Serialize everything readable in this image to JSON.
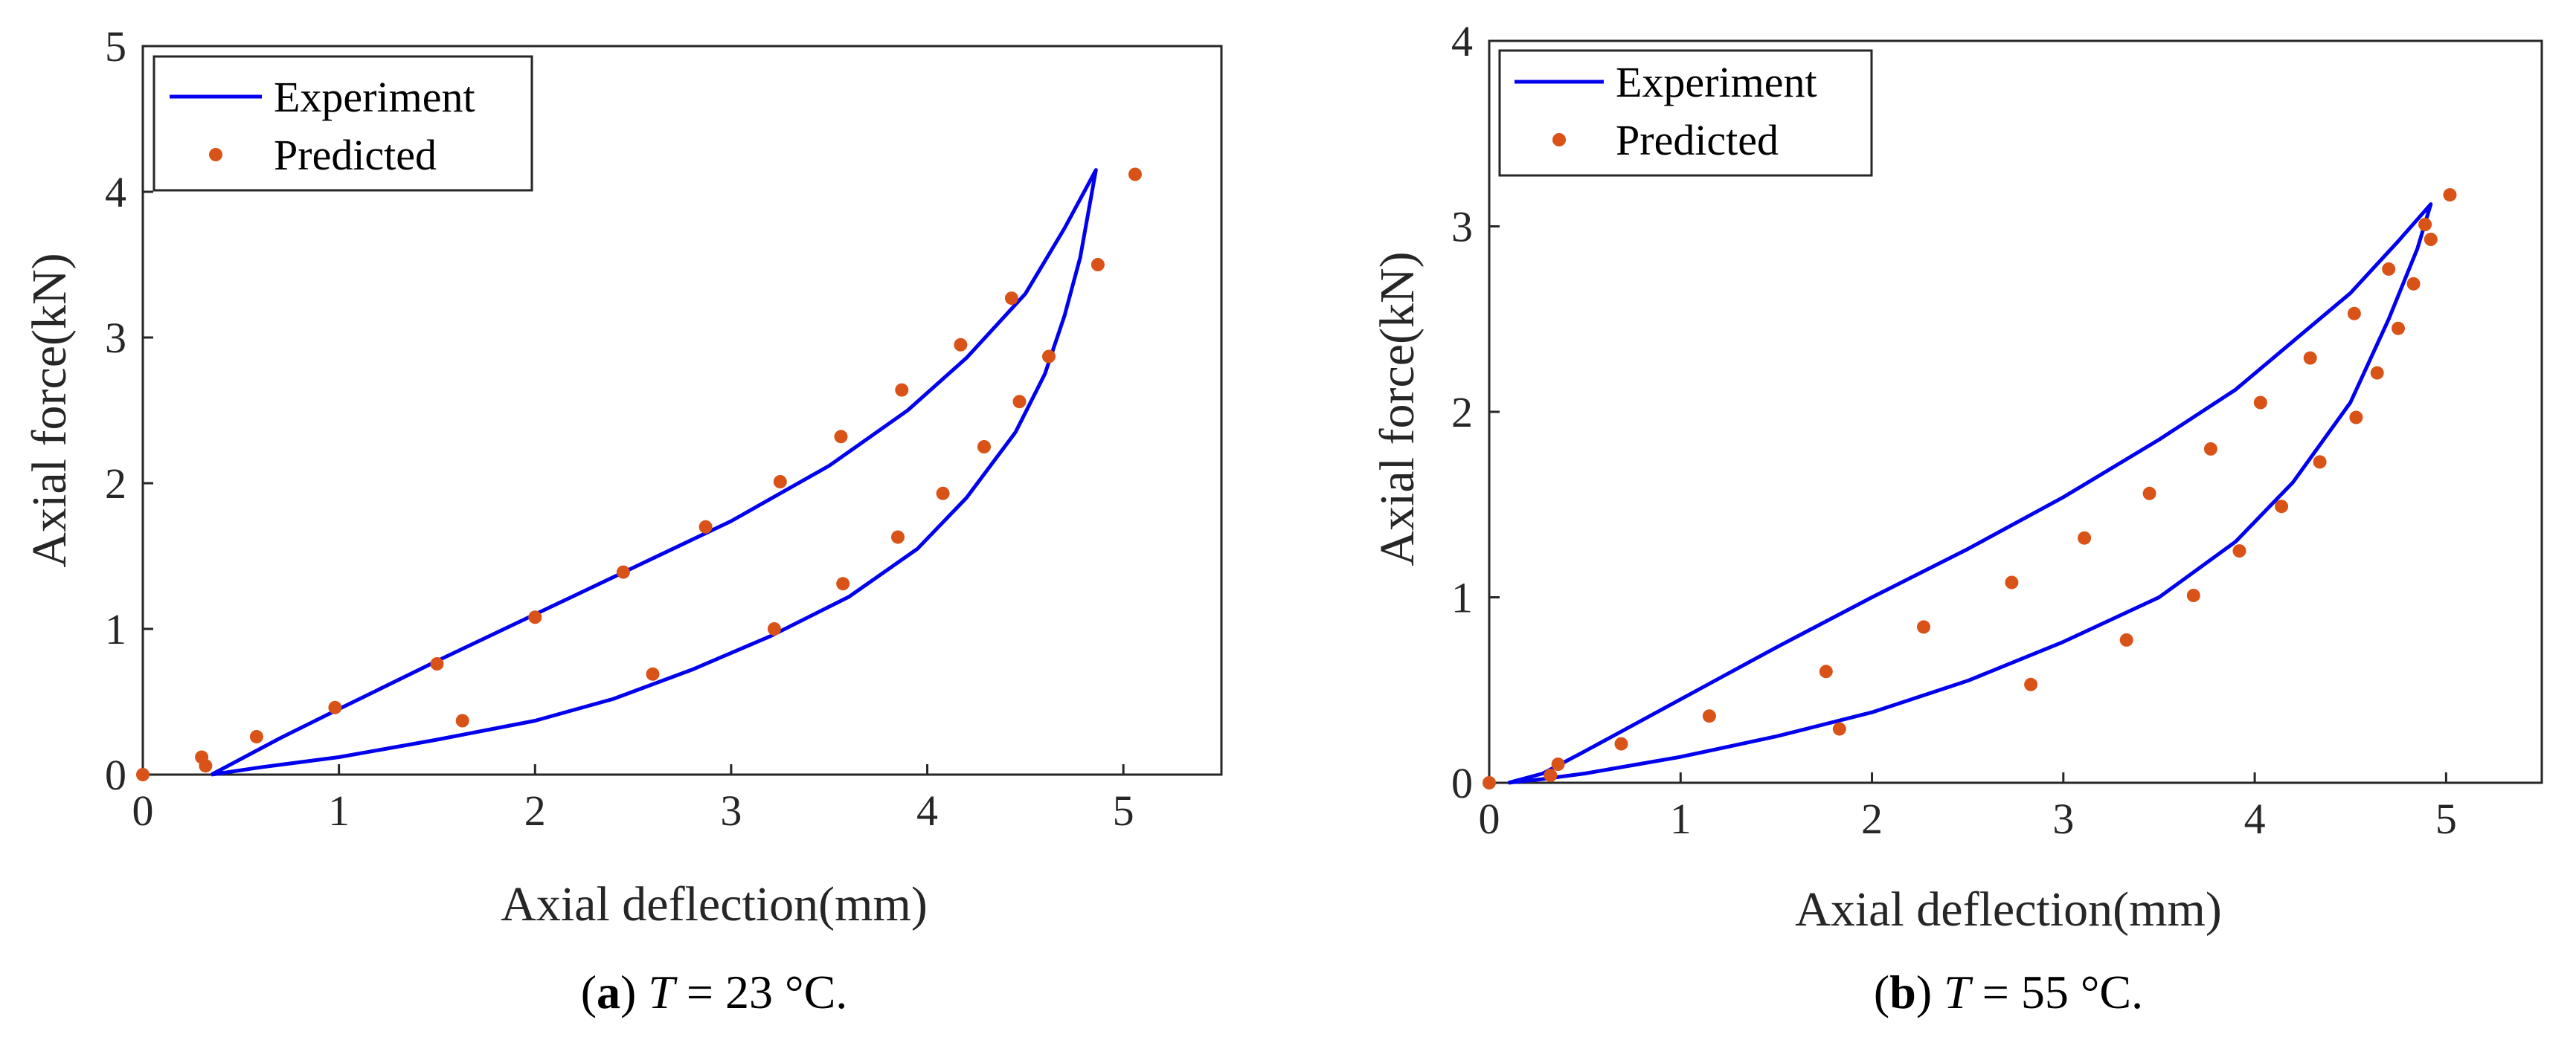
{
  "colors": {
    "experiment": "#0000ee",
    "predicted": "#d95319",
    "axis": "#262626"
  },
  "chart_data": [
    {
      "type": "line",
      "xlabel": "Axial deflection(mm)",
      "ylabel": "Axial force(kN)",
      "xlim": [
        0,
        5.5
      ],
      "ylim": [
        0,
        5
      ],
      "xticks": [
        0,
        1,
        2,
        3,
        4,
        5
      ],
      "yticks": [
        0,
        1,
        2,
        3,
        4,
        5
      ],
      "legend": {
        "placement": "top-left",
        "entries": [
          "Experiment",
          "Predicted"
        ]
      },
      "caption": {
        "letter": "a",
        "var": "T",
        "rest": " = 23 °C."
      },
      "series": [
        {
          "name": "Experiment",
          "style": "line",
          "x": [
            0.35,
            0.7,
            1.0,
            1.5,
            2.0,
            2.5,
            3.0,
            3.5,
            3.9,
            4.2,
            4.5,
            4.7,
            4.86,
            4.78,
            4.7,
            4.6,
            4.45,
            4.2,
            3.95,
            3.6,
            3.2,
            2.8,
            2.4,
            2.0,
            1.5,
            1.0,
            0.6,
            0.35
          ],
          "y": [
            0.0,
            0.25,
            0.45,
            0.78,
            1.1,
            1.42,
            1.74,
            2.12,
            2.5,
            2.86,
            3.3,
            3.75,
            4.15,
            3.55,
            3.15,
            2.75,
            2.35,
            1.9,
            1.55,
            1.22,
            0.95,
            0.72,
            0.52,
            0.37,
            0.24,
            0.12,
            0.05,
            0.0
          ]
        },
        {
          "name": "Predicted",
          "style": "scatter",
          "x": [
            0.0,
            0.3,
            0.32,
            0.58,
            0.98,
            1.5,
            2.0,
            2.45,
            2.87,
            3.25,
            3.56,
            3.87,
            4.17,
            4.43,
            5.06,
            4.87,
            4.62,
            4.47,
            4.29,
            4.08,
            3.85,
            3.57,
            3.22,
            2.6,
            1.63
          ],
          "y": [
            0.0,
            0.12,
            0.06,
            0.26,
            0.46,
            0.76,
            1.08,
            1.39,
            1.7,
            2.01,
            2.32,
            2.64,
            2.95,
            3.27,
            4.12,
            3.5,
            2.87,
            2.56,
            2.25,
            1.93,
            1.63,
            1.31,
            1.0,
            0.69,
            0.37
          ]
        }
      ]
    },
    {
      "type": "line",
      "xlabel": "Axial deflection(mm)",
      "ylabel": "Axial force(kN)",
      "xlim": [
        0,
        5.5
      ],
      "ylim": [
        0,
        4
      ],
      "xticks": [
        0,
        1,
        2,
        3,
        4,
        5
      ],
      "yticks": [
        0,
        1,
        2,
        3,
        4
      ],
      "legend": {
        "placement": "top-left",
        "entries": [
          "Experiment",
          "Predicted"
        ]
      },
      "caption": {
        "letter": "b",
        "var": "T",
        "rest": " = 55 °C."
      },
      "series": [
        {
          "name": "Experiment",
          "style": "line",
          "x": [
            0.1,
            0.28,
            0.5,
            1.0,
            1.5,
            2.0,
            2.5,
            3.0,
            3.5,
            3.9,
            4.2,
            4.5,
            4.75,
            4.92,
            4.85,
            4.7,
            4.5,
            4.2,
            3.9,
            3.5,
            3.0,
            2.5,
            2.0,
            1.5,
            1.0,
            0.5,
            0.28,
            0.1
          ],
          "y": [
            0.0,
            0.05,
            0.17,
            0.45,
            0.73,
            1.0,
            1.26,
            1.54,
            1.85,
            2.12,
            2.38,
            2.64,
            2.92,
            3.12,
            2.88,
            2.5,
            2.05,
            1.62,
            1.3,
            1.0,
            0.76,
            0.55,
            0.38,
            0.25,
            0.14,
            0.05,
            0.02,
            0.0
          ]
        },
        {
          "name": "Predicted",
          "style": "scatter",
          "x": [
            0.0,
            0.32,
            0.36,
            0.69,
            1.15,
            1.76,
            2.27,
            2.73,
            3.11,
            3.45,
            3.77,
            4.03,
            4.29,
            4.52,
            4.7,
            4.89,
            5.02,
            4.92,
            4.83,
            4.75,
            4.64,
            4.53,
            4.34,
            4.14,
            3.92,
            3.68,
            3.33,
            2.83,
            1.83
          ],
          "y": [
            0.0,
            0.04,
            0.1,
            0.21,
            0.36,
            0.6,
            0.84,
            1.08,
            1.32,
            1.56,
            1.8,
            2.05,
            2.29,
            2.53,
            2.77,
            3.01,
            3.17,
            2.93,
            2.69,
            2.45,
            2.21,
            1.97,
            1.73,
            1.49,
            1.25,
            1.01,
            0.77,
            0.53,
            0.29
          ]
        }
      ]
    }
  ]
}
